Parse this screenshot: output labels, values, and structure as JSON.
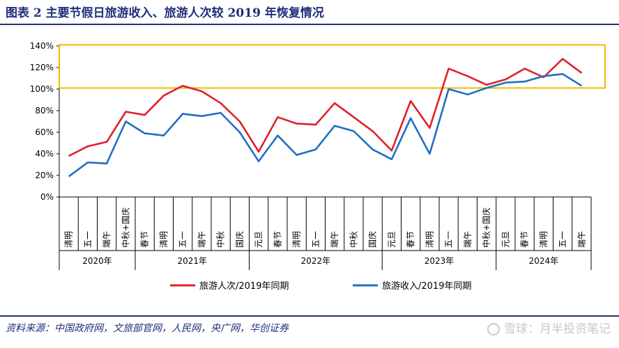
{
  "title": "图表  2    主要节假日旅游收入、旅游人次较 2019 年恢复情况",
  "source": "资料来源：中国政府网，文旅部官网，人民网，央广网，华创证券",
  "watermark": "雪球：月半投资笔记",
  "colors": {
    "brand": "#1f2f7a",
    "red": "#e0202a",
    "blue": "#1f6fc4",
    "highlight": "#f2b800"
  },
  "chart_data": {
    "type": "line",
    "categories": [
      "清明",
      "五一",
      "端午",
      "中秋+国庆",
      "春节",
      "清明",
      "五一",
      "端午",
      "中秋",
      "国庆",
      "元旦",
      "春节",
      "清明",
      "五一",
      "端午",
      "中秋",
      "国庆",
      "元旦",
      "春节",
      "清明",
      "五一",
      "端午",
      "中秋+国庆",
      "元旦",
      "春节",
      "清明",
      "五一",
      "端午"
    ],
    "years": [
      {
        "label": "2020年",
        "start": 0,
        "end": 3
      },
      {
        "label": "2021年",
        "start": 4,
        "end": 9
      },
      {
        "label": "2022年",
        "start": 10,
        "end": 16
      },
      {
        "label": "2023年",
        "start": 17,
        "end": 22
      },
      {
        "label": "2024年",
        "start": 23,
        "end": 27
      }
    ],
    "series": [
      {
        "name": "旅游人次/2019年同期",
        "color": "#e0202a",
        "values": [
          38,
          47,
          51,
          79,
          76,
          94,
          103,
          98,
          87,
          70,
          42,
          74,
          68,
          67,
          87,
          74,
          61,
          43,
          89,
          64,
          119,
          112,
          104,
          109,
          119,
          111,
          128,
          115
        ]
      },
      {
        "name": "旅游收入/2019年同期",
        "color": "#1f6fc4",
        "values": [
          19,
          32,
          31,
          70,
          59,
          57,
          77,
          75,
          78,
          60,
          33,
          57,
          39,
          44,
          66,
          61,
          44,
          35,
          73,
          40,
          100,
          95,
          101,
          106,
          107,
          112,
          114,
          103
        ]
      }
    ],
    "ytick_labels": [
      "0%",
      "20%",
      "40%",
      "60%",
      "80%",
      "100%",
      "120%",
      "140%"
    ],
    "ylim": [
      0,
      140
    ],
    "highlight_range": [
      101,
      141
    ],
    "legend_position": "bottom-center",
    "grid": false
  }
}
